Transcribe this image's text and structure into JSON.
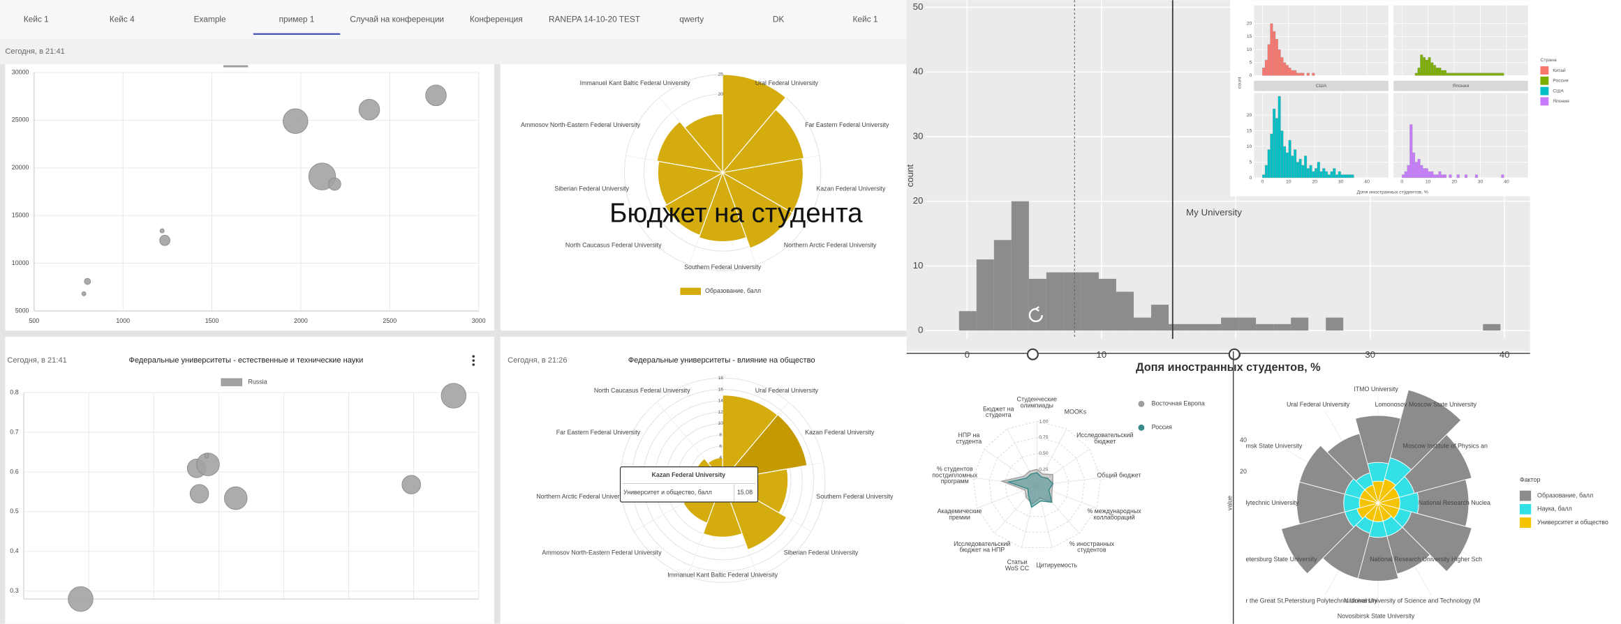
{
  "tabs": [
    "Кейс 1",
    "Кейс 4",
    "Example",
    "пример 1",
    "Случай на конференции",
    "Конференция",
    "RANEPA 14-10-20 TEST",
    "qwerty",
    "DK",
    "Кейс 1"
  ],
  "active_tab_index": 3,
  "chart_data": [
    {
      "type": "bubble",
      "timestamp": "Сегодня, в 21:41",
      "xlim": [
        500,
        3000
      ],
      "ylim": [
        5000,
        30000
      ],
      "xticks": [
        500,
        1000,
        1500,
        2000,
        2500,
        3000
      ],
      "yticks": [
        5000,
        10000,
        15000,
        20000,
        25000,
        30000
      ],
      "color": "#a3a3a3",
      "x": [
        1970,
        2385,
        2760,
        2120,
        2190,
        1220,
        1235,
        800,
        780
      ],
      "values": [
        24900,
        26100,
        27600,
        19100,
        18300,
        13400,
        12400,
        8100,
        6800
      ],
      "sizes": [
        12,
        10,
        10,
        13,
        6,
        2,
        5,
        3,
        2
      ]
    },
    {
      "type": "polar",
      "categories": [
        "Ural Federal University",
        "Far Eastern Federal University",
        "Kazan Federal University",
        "Northern Arctic Federal University",
        "Southern Federal University",
        "North Caucasus Federal University",
        "Siberian Federal University",
        "Ammosov North-Eastern Federal University",
        "Immanuel Kant Baltic Federal University"
      ],
      "values": [
        25,
        21,
        20.5,
        20.5,
        17.6,
        17,
        16.5,
        17,
        15
      ],
      "color": "#d4ac0d",
      "ylim": [
        0,
        25
      ],
      "yticks": [
        20,
        25
      ],
      "legend": "Образование, балл",
      "annotation": "Бюджет на студента"
    },
    {
      "type": "bubble",
      "timestamp": "Сегодня, в 21:41",
      "title": "Федеральные университеты - естественные и технические науки",
      "legend": "Russia",
      "xlim": [
        0,
        100
      ],
      "ylim": [
        0.28,
        0.8
      ],
      "yticks": [
        0.3,
        0.4,
        0.5,
        0.6,
        0.7,
        0.8
      ],
      "color": "#a3a3a3",
      "x": [
        94.5,
        38,
        40.5,
        38.6,
        46.6,
        85.2,
        12.5,
        40.2
      ],
      "values": [
        0.792,
        0.609,
        0.619,
        0.545,
        0.534,
        0.568,
        0.28,
        0.641
      ],
      "sizes": [
        12,
        9,
        11,
        9,
        11,
        9,
        12,
        2
      ]
    },
    {
      "type": "polar",
      "timestamp": "Сегодня, в 21:26",
      "title": "Федеральные университеты - влияние на общество",
      "categories": [
        "Ural Federal University",
        "Kazan Federal University",
        "Southern Federal University",
        "Siberian Federal University",
        "Immanuel Kant Baltic Federal University",
        "Ammosov North-Eastern Federal University",
        "Northern Arctic Federal University",
        "Far Eastern Federal University",
        "North Caucasus Federal University"
      ],
      "values": [
        15,
        15.08,
        11.5,
        13,
        10,
        8,
        6,
        5,
        4
      ],
      "color": "#d4ac0d",
      "highlight_color": "#c49a00",
      "highlight_index": 1,
      "ylim": [
        0,
        18
      ],
      "yticks": [
        4,
        6,
        8,
        10,
        12,
        14,
        16,
        18
      ],
      "tooltip_label": "Университет и общество, балл"
    },
    {
      "type": "histogram",
      "x_label": "Допя иностранных студентов, %",
      "y_label": "count",
      "bins": [
        -0.6,
        0.7,
        2,
        3.3,
        4.6,
        5.9,
        7.2,
        8.5,
        9.8,
        11.1,
        12.4,
        13.7,
        15,
        16.3,
        17.6,
        18.9,
        20.2,
        21.5,
        22.8,
        24.1,
        25.4,
        26.7,
        28,
        29.3,
        30.6,
        31.9,
        33.2,
        34.5,
        35.8,
        37.1,
        38.4,
        39.7
      ],
      "values": [
        3,
        11,
        14,
        20,
        8,
        9,
        9,
        9,
        8,
        6,
        2,
        4,
        1,
        1,
        1,
        2,
        2,
        1,
        1,
        2,
        0,
        2,
        0,
        0,
        0,
        0,
        0,
        0,
        0,
        0,
        1
      ],
      "color": "#8c8c8c",
      "xlim": [
        -4.5,
        41.9
      ],
      "ylim": [
        -3.2,
        51.1
      ],
      "xticks": [
        0,
        10,
        20,
        30,
        40
      ],
      "yticks": [
        0,
        10,
        20,
        30,
        40,
        50
      ],
      "vlines": [
        {
          "value": 8,
          "style": "dashed"
        },
        {
          "value": 15.3,
          "style": "solid",
          "label": "My University"
        }
      ]
    },
    {
      "type": "facet_histogram",
      "x_label": "Допя иностранных студентов, %",
      "y_label": "count",
      "legend_title": "Страна",
      "bins": [
        0,
        1,
        2,
        3,
        4,
        5,
        6,
        7,
        8,
        9,
        10,
        11,
        12,
        13,
        14,
        15,
        16,
        17,
        18,
        19,
        20,
        21,
        22,
        23,
        24,
        25,
        26,
        27,
        28,
        29,
        30,
        31,
        32,
        33,
        34,
        35,
        36,
        37,
        38,
        39,
        40
      ],
      "xlim": [
        -3.2,
        48.2
      ],
      "ylim": [
        0,
        27
      ],
      "xticks": [
        0,
        10,
        20,
        30,
        40
      ],
      "yticks": [
        0,
        5,
        10,
        15,
        20
      ],
      "series": [
        {
          "name": "Китай",
          "color": "#f8766d",
          "values": [
            3,
            6,
            12,
            20,
            17,
            14,
            10,
            7,
            5,
            4,
            3,
            2,
            2,
            1,
            1,
            1,
            0,
            1,
            0,
            1,
            0,
            0,
            0,
            0,
            0,
            0,
            0,
            0,
            0,
            0,
            0,
            0,
            0,
            0,
            0,
            0,
            0,
            0,
            0,
            0
          ]
        },
        {
          "name": "Россия",
          "color": "#7cae00",
          "values": [
            0,
            0,
            0,
            0,
            0,
            1,
            3,
            8,
            7,
            6,
            7,
            5,
            4,
            3,
            3,
            2,
            2,
            1,
            1,
            1,
            1,
            1,
            1,
            1,
            1,
            1,
            1,
            1,
            1,
            1,
            1,
            1,
            1,
            1,
            1,
            1,
            1,
            1,
            1,
            0
          ]
        },
        {
          "name": "США",
          "color": "#00bfc4",
          "values": [
            1,
            4,
            9,
            14,
            22,
            19,
            26,
            15,
            10,
            8,
            12,
            7,
            9,
            5,
            6,
            4,
            7,
            3,
            4,
            2,
            3,
            5,
            2,
            3,
            2,
            1,
            2,
            3,
            1,
            2,
            1,
            1,
            1,
            1,
            1,
            0,
            0,
            0,
            0,
            0
          ]
        },
        {
          "name": "Япония",
          "color": "#c77cff",
          "values": [
            1,
            2,
            4,
            17,
            8,
            5,
            6,
            4,
            3,
            3,
            2,
            2,
            1,
            1,
            2,
            1,
            1,
            0,
            1,
            0,
            0,
            1,
            0,
            0,
            1,
            0,
            0,
            0,
            1,
            0,
            0,
            0,
            0,
            0,
            0,
            0,
            0,
            0,
            1,
            0
          ]
        }
      ]
    },
    {
      "type": "radar",
      "categories": [
        [
          "Студенческие",
          "олимпиады"
        ],
        [
          "MOOKs"
        ],
        [
          "Исследовательский",
          "бюджет"
        ],
        [
          "Общий бюджет"
        ],
        [
          "% международных",
          "коллабораций"
        ],
        [
          "% иностранных",
          "студентов"
        ],
        [
          "Цитируемость"
        ],
        [
          "Статьи",
          "WoS CC"
        ],
        [
          "Исследовательский",
          "бюджет на НПР"
        ],
        [
          "Академические",
          "премии"
        ],
        [
          "% студентов",
          "постдипломных",
          "программ"
        ],
        [
          "НПР на",
          "студента"
        ],
        [
          "Бюджет на",
          "студента"
        ]
      ],
      "ylim": [
        0,
        1
      ],
      "yticks": [
        0.25,
        {
          "value": 0.5,
          "label": "0.50"
        },
        0.75,
        {
          "value": 1,
          "label": "1.00"
        }
      ],
      "series": [
        {
          "name": "Восточная Европа",
          "color": "#9e9e9e",
          "values": [
            0.25,
            0.2,
            0.3,
            0.25,
            0.25,
            0.35,
            0.2,
            0.3,
            0.25,
            0.2,
            0.55,
            0.25,
            0.25
          ]
        },
        {
          "name": "Россия",
          "color": "#3a8a8a",
          "values": [
            0.2,
            0.15,
            0.2,
            0.25,
            0.2,
            0.35,
            0.25,
            0.35,
            0.2,
            0.15,
            0.45,
            0.2,
            0.2
          ]
        }
      ]
    },
    {
      "type": "polar_stacked",
      "y_label": "value",
      "legend_title": "Фактор",
      "categories": [
        "ITMO University",
        "Lomonosov Moscow State University",
        "Moscow Institute of Physics an",
        "National Research Nuclea",
        "National Research University Higher Sch",
        "National University of Science and Technology (M",
        "Novosibirsk State University",
        "r the Great St.Petersburg Polytechnic University",
        "etersburg State University",
        "lytechnic University",
        "msk State University",
        "Ural Federal University"
      ],
      "ylim": [
        0,
        80
      ],
      "yticks": [
        20,
        40
      ],
      "series": [
        {
          "name": "Образование, балл",
          "color": "#8c8c8c",
          "values": [
            30,
            45,
            38,
            32,
            40,
            25,
            28,
            30,
            42,
            30,
            30,
            26
          ]
        },
        {
          "name": "Наука, балл",
          "color": "#33e0e6",
          "values": [
            12,
            14,
            10,
            12,
            8,
            10,
            10,
            8,
            8,
            10,
            10,
            8
          ]
        },
        {
          "name": "Университет и общество",
          "color": "#f5c400",
          "values": [
            14,
            16,
            14,
            14,
            14,
            12,
            12,
            12,
            14,
            12,
            12,
            12
          ]
        }
      ]
    }
  ]
}
